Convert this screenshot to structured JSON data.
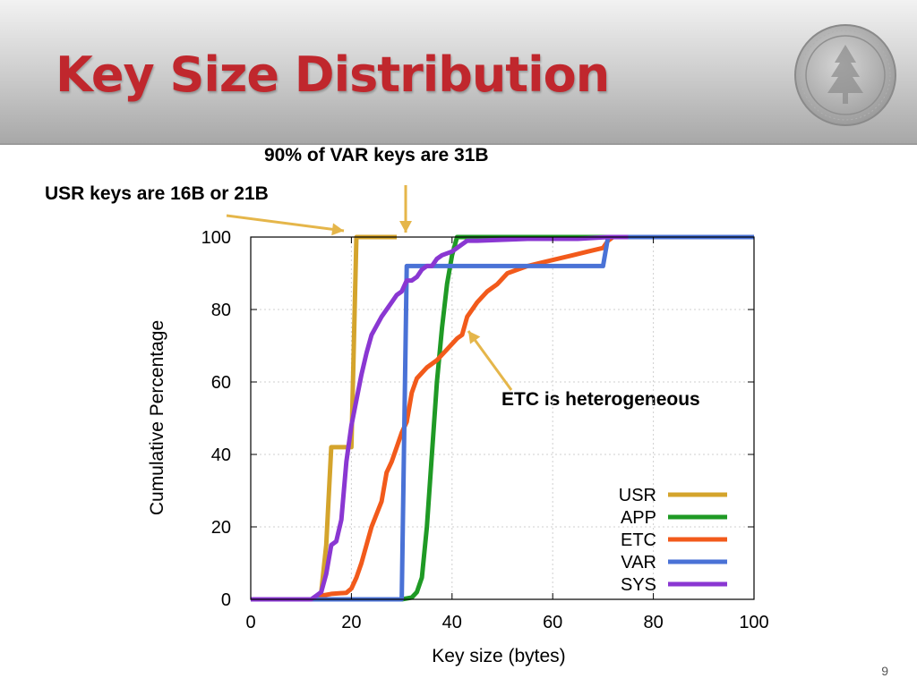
{
  "slide": {
    "title": "Key Size Distribution",
    "page_number": "9"
  },
  "annotations": {
    "var_note": "90% of VAR keys are 31B",
    "usr_note": "USR keys are 16B or 21B",
    "etc_note": "ETC is heterogeneous"
  },
  "colors": {
    "title": "#c0272d",
    "arrow": "#e5b64a",
    "USR": "#d4a42c",
    "APP": "#1f9a25",
    "ETC": "#f25a1b",
    "VAR": "#4a72d6",
    "SYS": "#8a37d2"
  },
  "chart_data": {
    "type": "line",
    "title": "",
    "xlabel": "Key size (bytes)",
    "ylabel": "Cumulative Percentage",
    "xlim": [
      0,
      100
    ],
    "ylim": [
      0,
      100
    ],
    "xticks": [
      0,
      20,
      40,
      60,
      80,
      100
    ],
    "yticks": [
      0,
      20,
      40,
      60,
      80,
      100
    ],
    "grid": true,
    "legend_position": "bottom-right",
    "series": [
      {
        "name": "USR",
        "points": [
          [
            0,
            0
          ],
          [
            13,
            0
          ],
          [
            14,
            2
          ],
          [
            15,
            15
          ],
          [
            16,
            42
          ],
          [
            19,
            42
          ],
          [
            20,
            42
          ],
          [
            21,
            100
          ],
          [
            29,
            100
          ]
        ]
      },
      {
        "name": "APP",
        "points": [
          [
            0,
            0
          ],
          [
            30,
            0
          ],
          [
            32,
            0.5
          ],
          [
            33,
            2
          ],
          [
            34,
            6
          ],
          [
            35,
            20
          ],
          [
            36,
            40
          ],
          [
            37,
            60
          ],
          [
            38,
            75
          ],
          [
            39,
            87
          ],
          [
            40,
            95
          ],
          [
            41,
            100
          ],
          [
            50,
            100
          ],
          [
            70,
            100
          ],
          [
            100,
            100
          ]
        ]
      },
      {
        "name": "ETC",
        "points": [
          [
            0,
            0
          ],
          [
            12,
            0
          ],
          [
            14,
            1
          ],
          [
            16,
            1.5
          ],
          [
            19,
            1.8
          ],
          [
            20,
            3
          ],
          [
            21,
            6
          ],
          [
            22,
            10
          ],
          [
            24,
            20
          ],
          [
            26,
            27
          ],
          [
            27,
            35
          ],
          [
            28,
            38
          ],
          [
            29,
            42
          ],
          [
            30,
            46
          ],
          [
            31,
            49
          ],
          [
            32,
            57
          ],
          [
            33,
            61
          ],
          [
            35,
            64
          ],
          [
            37,
            66
          ],
          [
            39,
            69
          ],
          [
            41,
            72
          ],
          [
            42,
            73
          ],
          [
            43,
            78
          ],
          [
            45,
            82
          ],
          [
            47,
            85
          ],
          [
            49,
            87
          ],
          [
            51,
            90
          ],
          [
            53,
            91
          ],
          [
            55,
            92
          ],
          [
            58,
            93
          ],
          [
            61,
            94
          ],
          [
            64,
            95
          ],
          [
            67,
            96
          ],
          [
            70,
            97
          ],
          [
            71,
            99
          ],
          [
            72,
            100
          ],
          [
            100,
            100
          ]
        ]
      },
      {
        "name": "VAR",
        "points": [
          [
            0,
            0
          ],
          [
            29,
            0
          ],
          [
            30,
            0
          ],
          [
            31,
            92
          ],
          [
            45,
            92
          ],
          [
            60,
            92
          ],
          [
            70,
            92
          ],
          [
            71,
            100
          ],
          [
            100,
            100
          ]
        ]
      },
      {
        "name": "SYS",
        "points": [
          [
            0,
            0
          ],
          [
            12,
            0
          ],
          [
            13,
            1
          ],
          [
            14,
            2
          ],
          [
            15,
            7
          ],
          [
            16,
            15
          ],
          [
            17,
            16
          ],
          [
            18,
            22
          ],
          [
            19,
            38
          ],
          [
            20,
            48
          ],
          [
            21,
            55
          ],
          [
            22,
            62
          ],
          [
            23,
            68
          ],
          [
            24,
            73
          ],
          [
            26,
            78
          ],
          [
            28,
            82
          ],
          [
            29,
            84
          ],
          [
            30,
            85
          ],
          [
            31,
            88
          ],
          [
            32,
            88
          ],
          [
            33,
            89
          ],
          [
            34,
            91
          ],
          [
            35,
            92
          ],
          [
            36,
            92
          ],
          [
            37,
            94
          ],
          [
            38,
            95
          ],
          [
            40,
            96
          ],
          [
            42,
            98
          ],
          [
            43,
            99
          ],
          [
            45,
            99
          ],
          [
            55,
            99.5
          ],
          [
            65,
            99.5
          ],
          [
            71,
            100
          ],
          [
            75,
            100
          ]
        ]
      }
    ]
  }
}
